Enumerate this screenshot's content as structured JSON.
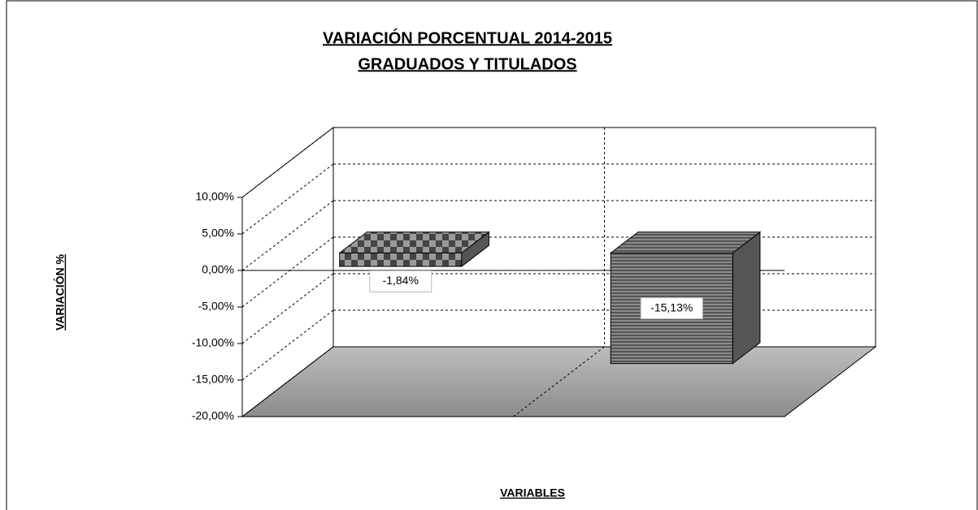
{
  "chart_data": {
    "type": "bar3d",
    "title": "VARIACIÓN PORCENTUAL 2014-2015",
    "subtitle": "GRADUADOS Y TITULADOS",
    "xlabel": "VARIABLES",
    "ylabel": "VARIACIÓN %",
    "categories": [
      null,
      null
    ],
    "values": [
      -1.84,
      -15.13
    ],
    "value_labels": [
      "-1,84%",
      "-15,13%"
    ],
    "ylim": [
      -20,
      10
    ],
    "yticks": [
      {
        "value": -20,
        "label": "-20,00%"
      },
      {
        "value": -15,
        "label": "-15,00%"
      },
      {
        "value": -10,
        "label": "-10,00%"
      },
      {
        "value": -5,
        "label": "-5,00%"
      },
      {
        "value": 0,
        "label": "0,00%"
      },
      {
        "value": 5,
        "label": "5,00%"
      },
      {
        "value": 10,
        "label": "10,00%"
      }
    ],
    "grid": true,
    "color": "#6e6e6e"
  }
}
